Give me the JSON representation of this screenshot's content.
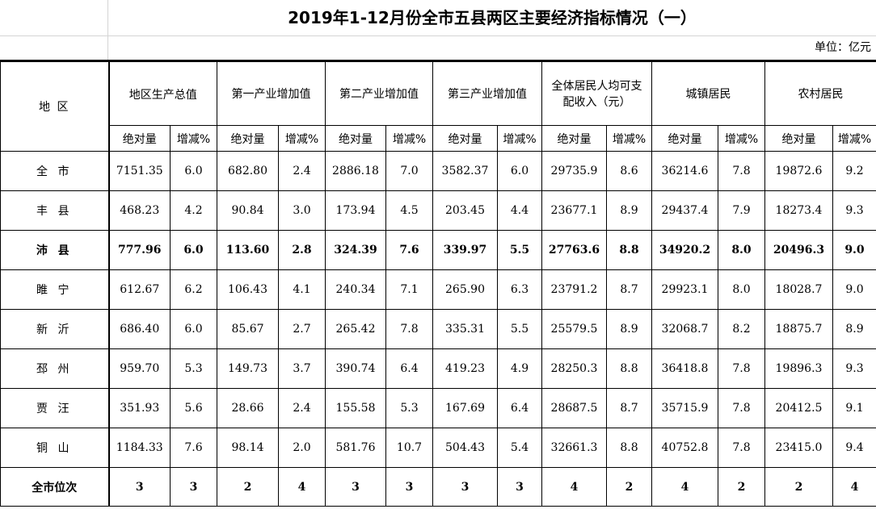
{
  "title": "2019年1-12月份全市五县两区主要经济指标情况（一）",
  "unit": "单位：亿元",
  "headers": {
    "region": "地  区",
    "groups": [
      "地区生产总值",
      "第一产业增加值",
      "第二产业增加值",
      "第三产业增加值",
      "全体居民人均可支配收入（元）",
      "城镇居民",
      "农村居民"
    ],
    "sub_abs": "绝对量",
    "sub_pct": "增减%"
  },
  "rows": [
    {
      "name": "全 市",
      "v": [
        "7151.35",
        "6.0",
        "682.80",
        "2.4",
        "2886.18",
        "7.0",
        "3582.37",
        "6.0",
        "29735.9",
        "8.6",
        "36214.6",
        "7.8",
        "19872.6",
        "9.2"
      ]
    },
    {
      "name": "丰 县",
      "v": [
        "468.23",
        "4.2",
        "90.84",
        "3.0",
        "173.94",
        "4.5",
        "203.45",
        "4.4",
        "23677.1",
        "8.9",
        "29437.4",
        "7.9",
        "18273.4",
        "9.3"
      ]
    },
    {
      "name": "沛 县",
      "v": [
        "777.96",
        "6.0",
        "113.60",
        "2.8",
        "324.39",
        "7.6",
        "339.97",
        "5.5",
        "27763.6",
        "8.8",
        "34920.2",
        "8.0",
        "20496.3",
        "9.0"
      ]
    },
    {
      "name": "睢 宁",
      "v": [
        "612.67",
        "6.2",
        "106.43",
        "4.1",
        "240.34",
        "7.1",
        "265.90",
        "6.3",
        "23791.2",
        "8.7",
        "29923.1",
        "8.0",
        "18028.7",
        "9.0"
      ]
    },
    {
      "name": "新 沂",
      "v": [
        "686.40",
        "6.0",
        "85.67",
        "2.7",
        "265.42",
        "7.8",
        "335.31",
        "5.5",
        "25579.5",
        "8.9",
        "32068.7",
        "8.2",
        "18875.7",
        "8.9"
      ]
    },
    {
      "name": "邳 州",
      "v": [
        "959.70",
        "5.3",
        "149.73",
        "3.7",
        "390.74",
        "6.4",
        "419.23",
        "4.9",
        "28250.3",
        "8.8",
        "36418.8",
        "7.8",
        "19896.3",
        "9.3"
      ]
    },
    {
      "name": "贾 汪",
      "v": [
        "351.93",
        "5.6",
        "28.66",
        "2.4",
        "155.58",
        "5.3",
        "167.69",
        "6.4",
        "28687.5",
        "8.7",
        "35715.9",
        "7.8",
        "20412.5",
        "9.1"
      ]
    },
    {
      "name": "铜 山",
      "v": [
        "1184.33",
        "7.6",
        "98.14",
        "2.0",
        "581.76",
        "10.7",
        "504.43",
        "5.4",
        "32661.3",
        "8.8",
        "40752.8",
        "7.8",
        "23415.0",
        "9.4"
      ]
    }
  ],
  "rank_row": {
    "name": "全市位次",
    "v": [
      "3",
      "3",
      "2",
      "4",
      "3",
      "3",
      "3",
      "3",
      "4",
      "2",
      "4",
      "2",
      "2",
      "4"
    ]
  }
}
